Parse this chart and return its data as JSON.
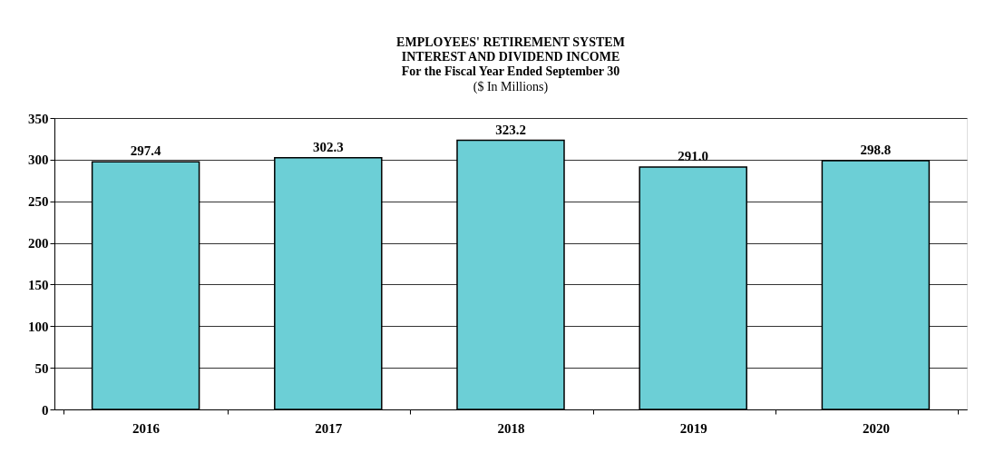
{
  "chart_data": {
    "type": "bar",
    "title": "EMPLOYEES' RETIREMENT SYSTEM\nINTEREST AND DIVIDEND INCOME\nFor the Fiscal Year Ended September 30",
    "subtitle": "($ In Millions)",
    "categories": [
      "2016",
      "2017",
      "2018",
      "2019",
      "2020"
    ],
    "values": [
      297.4,
      302.3,
      323.2,
      291.0,
      298.8
    ],
    "value_labels": [
      "297.4",
      "302.3",
      "323.2",
      "291.0",
      "298.8"
    ],
    "color": "#6ccfd6",
    "ylim": [
      0,
      350
    ],
    "yticks": [
      0,
      50,
      100,
      150,
      200,
      250,
      300,
      350
    ],
    "grid": "y"
  }
}
